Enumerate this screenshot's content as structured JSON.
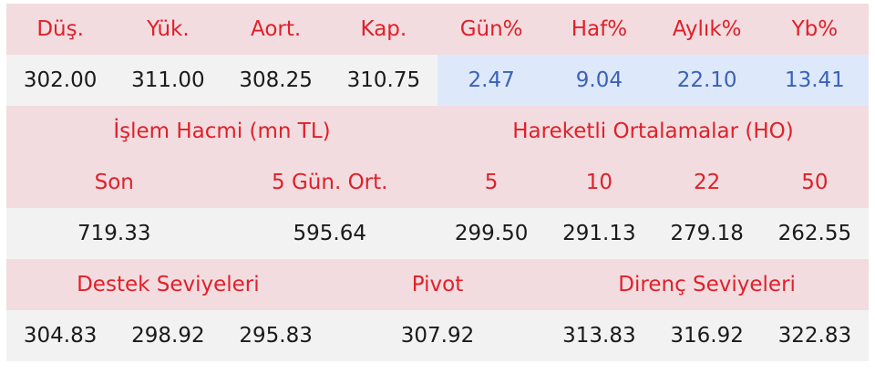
{
  "price_headers": [
    "Düş.",
    "Yük.",
    "Aort.",
    "Kap.",
    "Gün%",
    "Haf%",
    "Aylık%",
    "Yb%"
  ],
  "price_values": [
    "302.00",
    "311.00",
    "308.25",
    "310.75",
    "2.47",
    "9.04",
    "22.10",
    "13.41"
  ],
  "volume": {
    "title": "İşlem Hacmi (mn TL)",
    "son_label": "Son",
    "avg_label": "5 Gün. Ort.",
    "son": "719.33",
    "avg": "595.64"
  },
  "moving_averages": {
    "title": "Hareketli Ortalamalar (HO)",
    "periods": [
      "5",
      "10",
      "22",
      "50"
    ],
    "values": [
      "299.50",
      "291.13",
      "279.18",
      "262.55"
    ]
  },
  "levels": {
    "support_label": "Destek Seviyeleri",
    "pivot_label": "Pivot",
    "resistance_label": "Direnç Seviyeleri",
    "support": [
      "304.83",
      "298.92",
      "295.83"
    ],
    "pivot": "307.92",
    "resistance": [
      "313.83",
      "316.92",
      "322.83"
    ]
  },
  "colors": {
    "header_bg": "#f2dcdf",
    "header_text": "#e0202a",
    "value_bg": "#f2f2f2",
    "pct_bg": "#dde8fb",
    "pct_text": "#3a62b8"
  }
}
